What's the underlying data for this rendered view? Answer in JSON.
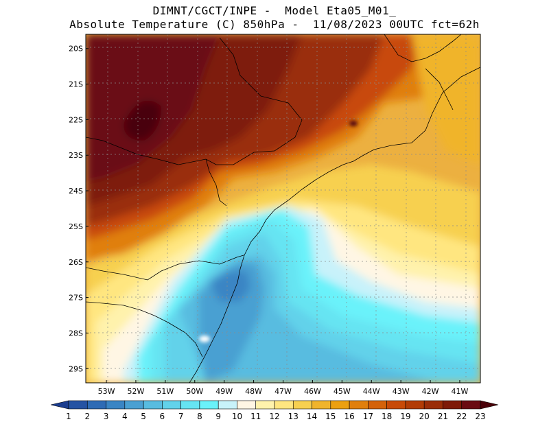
{
  "header": {
    "line1": "DIMNT/CGCT/INPE -  Model Eta05_M01_",
    "line2": "Absolute Temperature (C) 850hPa -  11/08/2023 00UTC fct=62h"
  },
  "map": {
    "lat_ticks": [
      "20S",
      "21S",
      "22S",
      "23S",
      "24S",
      "25S",
      "26S",
      "27S",
      "28S",
      "29S"
    ],
    "lon_ticks": [
      "53W",
      "52W",
      "51W",
      "50W",
      "49W",
      "48W",
      "47W",
      "46W",
      "45W",
      "44W",
      "43W",
      "42W",
      "41W"
    ],
    "lat_values": [
      -20,
      -21,
      -22,
      -23,
      -24,
      -25,
      -26,
      -27,
      -28,
      -29
    ],
    "lon_values": [
      -53,
      -52,
      -51,
      -50,
      -49,
      -48,
      -47,
      -46,
      -45,
      -44,
      -43,
      -42,
      -41
    ],
    "lon_range": [
      -53.7,
      -40.3
    ],
    "lat_range": [
      -29.4,
      -19.6
    ],
    "gridlines": "dotted"
  },
  "colorbar": {
    "labels": [
      "1",
      "2",
      "3",
      "4",
      "5",
      "6",
      "7",
      "8",
      "9",
      "10",
      "11",
      "12",
      "13",
      "14",
      "15",
      "16",
      "17",
      "18",
      "19",
      "20",
      "21",
      "22",
      "23"
    ],
    "colors": [
      "#1a3d8f",
      "#2553a3",
      "#2e6bb5",
      "#3a85c4",
      "#4aa0d2",
      "#58bce0",
      "#62d2ea",
      "#66e4f2",
      "#6af2fa",
      "#c8f2fa",
      "#fff6e4",
      "#fff2ac",
      "#ffe680",
      "#f7d050",
      "#f0b42c",
      "#eca010",
      "#e07f0c",
      "#d4620a",
      "#c84a08",
      "#b23c06",
      "#9a2d08",
      "#7e1a08",
      "#6a0a12",
      "#4a0008"
    ]
  }
}
